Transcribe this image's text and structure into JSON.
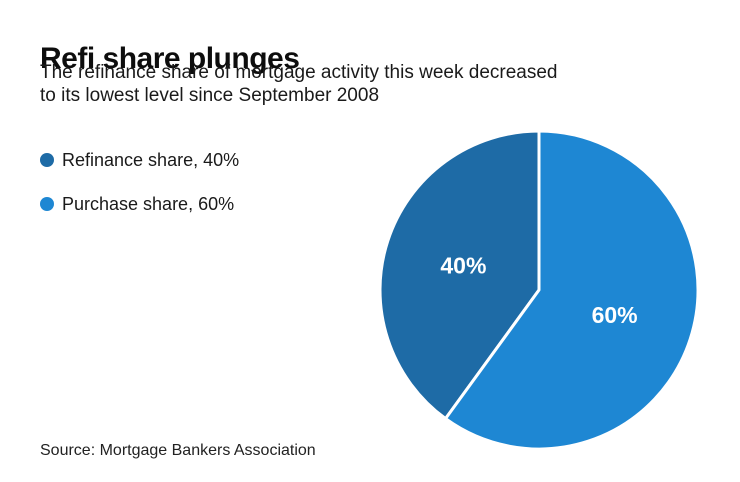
{
  "header": {
    "title": "Refi share plunges",
    "subtitle": "The refinance share of mortgage activity this week decreased to its lowest level since September 2008"
  },
  "legend": {
    "items": [
      {
        "label": "Refinance share, 40%",
        "color": "#1E6BA6"
      },
      {
        "label": "Purchase share, 60%",
        "color": "#1E87D3"
      }
    ]
  },
  "chart_data": {
    "type": "pie",
    "title": "Refi share plunges",
    "slices": [
      {
        "label": "Refinance share",
        "value": 40,
        "data_label": "40%",
        "color": "#1E6BA6",
        "text_color": "#ffffff"
      },
      {
        "label": "Purchase share",
        "value": 60,
        "data_label": "60%",
        "color": "#1E87D3",
        "text_color": "#ffffff"
      }
    ],
    "start_angle_deg": 216,
    "direction": "clockwise",
    "divider_color": "#ffffff",
    "label_radius_fraction": 0.5,
    "legend_position": "left"
  },
  "footer": {
    "source": "Source: Mortgage Bankers Association"
  }
}
